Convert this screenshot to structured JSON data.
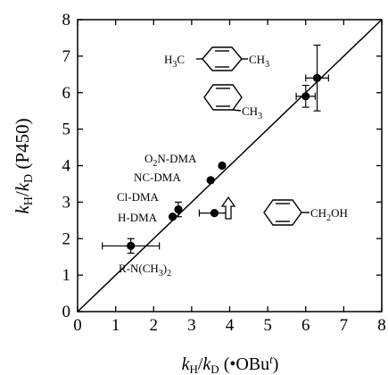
{
  "chart_data": {
    "type": "scatter",
    "title": "",
    "xlim": [
      0,
      8
    ],
    "ylim": [
      0,
      8
    ],
    "x_ticks": [
      "0",
      "1",
      "2",
      "3",
      "4",
      "5",
      "6",
      "7",
      "8"
    ],
    "y_ticks": [
      "0",
      "1",
      "2",
      "3",
      "4",
      "5",
      "6",
      "7",
      "8"
    ],
    "xlabel": {
      "k1": "k",
      "s1": "H",
      "slash": "/",
      "k2": "k",
      "s2": "D",
      "rest": " (•OBu",
      "sup": "t",
      "close": ")"
    },
    "ylabel": {
      "k1": "k",
      "s1": "H",
      "slash": "/",
      "k2": "k",
      "s2": "D",
      "rest": " (P450)"
    },
    "grid": false,
    "diagonal_line": {
      "from": [
        0,
        0
      ],
      "to": [
        8,
        8
      ]
    },
    "points": [
      {
        "x": 1.4,
        "y": 1.8,
        "xerr": 0.75,
        "yerr": 0.2
      },
      {
        "x": 2.5,
        "y": 2.6
      },
      {
        "x": 2.65,
        "y": 2.8,
        "yerr": 0.2
      },
      {
        "x": 3.5,
        "y": 3.6
      },
      {
        "x": 3.8,
        "y": 4.0
      },
      {
        "x": 3.6,
        "y": 2.7,
        "xerr": 0.4
      },
      {
        "x": 6.0,
        "y": 5.9,
        "xerr": 0.25,
        "yerr": 0.3
      },
      {
        "x": 6.3,
        "y": 6.4,
        "xerr": 0.3,
        "yerr": 0.9
      }
    ],
    "annotations": {
      "rn": {
        "base": "R-N(CH",
        "sub": "3",
        "tail": ")",
        "sub2": "2"
      },
      "hdma": "H-DMA",
      "cldma": "Cl-DMA",
      "ncdma": "NC-DMA",
      "o2n": {
        "a": "O",
        "sub": "2",
        "b": "N-DMA"
      },
      "xylene": {
        "left": "H",
        "leftsub": "3",
        "leftc": "C",
        "right": "CH",
        "rightsub": "3"
      },
      "toluene": {
        "right": "CH",
        "rightsub": "3"
      },
      "benzyl": {
        "right": "CH",
        "rightsub": "2",
        "tail": "OH"
      }
    }
  }
}
